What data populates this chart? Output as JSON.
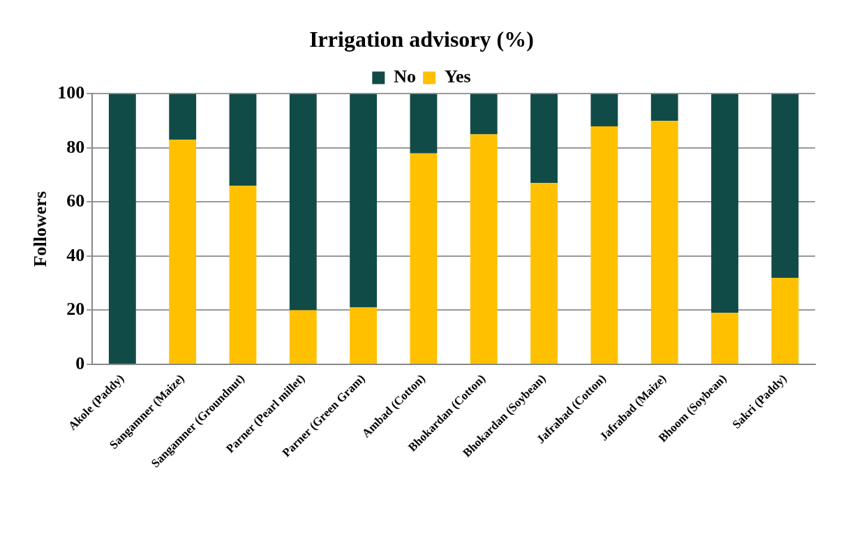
{
  "chart_data": {
    "type": "bar",
    "title": "Irrigation advisory (%)",
    "ylabel": "Followers",
    "categories": [
      "Akole (Paddy)",
      "Sangamner (Maize)",
      "Sangamner (Groundnut)",
      "Parner (Pearl millet)",
      "Parner (Green Gram)",
      "Ambad (Cotton)",
      "Bhokardan (Cotton)",
      "Bhokardan (Soybean)",
      "Jafrabad (Cotton)",
      "Jafrabad (Maize)",
      "Bhoom (Soybean)",
      "Sakri (Paddy)"
    ],
    "stacked": true,
    "series": [
      {
        "name": "Yes",
        "color": "#ffc000",
        "values": [
          0,
          83,
          66,
          20,
          21,
          78,
          85,
          67,
          88,
          90,
          19,
          32
        ]
      },
      {
        "name": "No",
        "color": "#114b47",
        "values": [
          100,
          17,
          34,
          80,
          79,
          22,
          15,
          33,
          12,
          10,
          81,
          68
        ]
      }
    ],
    "ylim": [
      0,
      100
    ],
    "yticks": [
      0,
      20,
      40,
      60,
      80,
      100
    ],
    "grid": "y",
    "legend": "top"
  }
}
